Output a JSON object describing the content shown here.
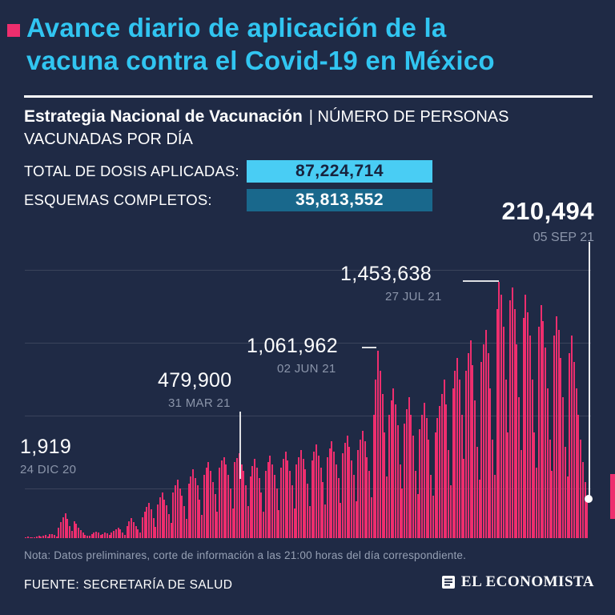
{
  "page": {
    "background": "#1f2a45",
    "accent_pink": "#ee2e6e",
    "accent_cyan": "#31c5f1"
  },
  "header": {
    "title": "Avance diario de aplicación de la\nvacuna contra el Covid-19 en México",
    "subtitle_bold": "Estrategia Nacional de Vacunación",
    "subtitle_rest": "| NÚMERO DE PERSONAS VACUNADAS POR DÍA"
  },
  "stats": [
    {
      "label": "TOTAL DE DOSIS APLICADAS:",
      "value": "87,224,714",
      "badge_bg": "#49cdf4",
      "badge_fg": "#18233e"
    },
    {
      "label": "ESQUEMAS COMPLETOS:",
      "value": "35,813,552",
      "badge_bg": "#19688c",
      "badge_fg": "#ffffff"
    }
  ],
  "highlight": {
    "value": "210,494",
    "date": "05 SEP 21"
  },
  "chart_data": {
    "type": "bar",
    "title": "Número de personas vacunadas por día en México",
    "x_range": [
      "24 DIC 20",
      "05 SEP 21"
    ],
    "frequency": "daily",
    "ylim": [
      0,
      1690000
    ],
    "grid": "horizontal-faint",
    "bar_color": "#ee2e6e",
    "annotations": [
      {
        "value": "1,919",
        "date": "24 DIC 20",
        "index": 0
      },
      {
        "value": "479,900",
        "date": "31 MAR 21",
        "index": 97
      },
      {
        "value": "1,061,962",
        "date": "02 JUN 21",
        "index": 160
      },
      {
        "value": "1,453,638",
        "date": "27 JUL 21",
        "index": 215
      },
      {
        "value": "210,494",
        "date": "05 SEP 21",
        "index": 255
      }
    ],
    "values": [
      1919,
      8500,
      6200,
      4100,
      2800,
      9400,
      12000,
      10500,
      14000,
      16500,
      9800,
      22000,
      25000,
      18000,
      7600,
      60000,
      90000,
      120000,
      140000,
      110000,
      70000,
      40000,
      95000,
      80000,
      60000,
      45000,
      30000,
      20000,
      12000,
      15000,
      22000,
      30000,
      38000,
      30000,
      18000,
      25000,
      33000,
      27000,
      20000,
      30000,
      40000,
      52000,
      60000,
      48000,
      30000,
      18000,
      70000,
      95000,
      115000,
      90000,
      70000,
      50000,
      30000,
      120000,
      150000,
      175000,
      200000,
      165000,
      115000,
      65000,
      190000,
      230000,
      260000,
      220000,
      185000,
      135000,
      85000,
      260000,
      300000,
      330000,
      280000,
      240000,
      180000,
      110000,
      310000,
      350000,
      390000,
      340000,
      300000,
      220000,
      130000,
      360000,
      400000,
      430000,
      380000,
      320000,
      250000,
      150000,
      400000,
      440000,
      460000,
      420000,
      360000,
      280000,
      170000,
      430000,
      455000,
      479900,
      420000,
      380000,
      300000,
      180000,
      350000,
      410000,
      450000,
      400000,
      340000,
      260000,
      150000,
      380000,
      430000,
      470000,
      420000,
      360000,
      280000,
      160000,
      400000,
      450000,
      490000,
      440000,
      380000,
      300000,
      170000,
      420000,
      460000,
      500000,
      450000,
      390000,
      310000,
      180000,
      440000,
      490000,
      530000,
      470000,
      400000,
      320000,
      190000,
      460000,
      510000,
      550000,
      490000,
      420000,
      340000,
      200000,
      480000,
      540000,
      580000,
      520000,
      440000,
      360000,
      210000,
      500000,
      560000,
      610000,
      550000,
      460000,
      380000,
      230000,
      700000,
      900000,
      1061962,
      950000,
      820000,
      600000,
      350000,
      700000,
      780000,
      850000,
      760000,
      640000,
      420000,
      280000,
      650000,
      730000,
      800000,
      700000,
      580000,
      380000,
      250000,
      620000,
      700000,
      770000,
      680000,
      560000,
      360000,
      240000,
      600000,
      680000,
      750000,
      820000,
      900000,
      760000,
      500000,
      300000,
      850000,
      950000,
      1020000,
      900000,
      700000,
      450000,
      950000,
      1050000,
      1120000,
      980000,
      780000,
      520000,
      330000,
      1000000,
      1100000,
      1180000,
      1050000,
      850000,
      560000,
      360000,
      1300000,
      1453638,
      1380000,
      1200000,
      900000,
      600000,
      1350000,
      1420000,
      1300000,
      1100000,
      800000,
      500000,
      1250000,
      1380000,
      1280000,
      1150000,
      900000,
      600000,
      400000,
      1200000,
      1320000,
      1230000,
      1080000,
      850000,
      560000,
      380000,
      1150000,
      1260000,
      1180000,
      1020000,
      800000,
      520000,
      350000,
      1050000,
      1150000,
      1000000,
      850000,
      700000,
      560000,
      430000,
      320000,
      210494
    ]
  },
  "footer": {
    "note": "Nota: Datos preliminares, corte de información a las 21:00 horas del día correspondiente.",
    "source": "FUENTE: SECRETARÍA DE SALUD",
    "brand": "EL ECONOMISTA"
  }
}
